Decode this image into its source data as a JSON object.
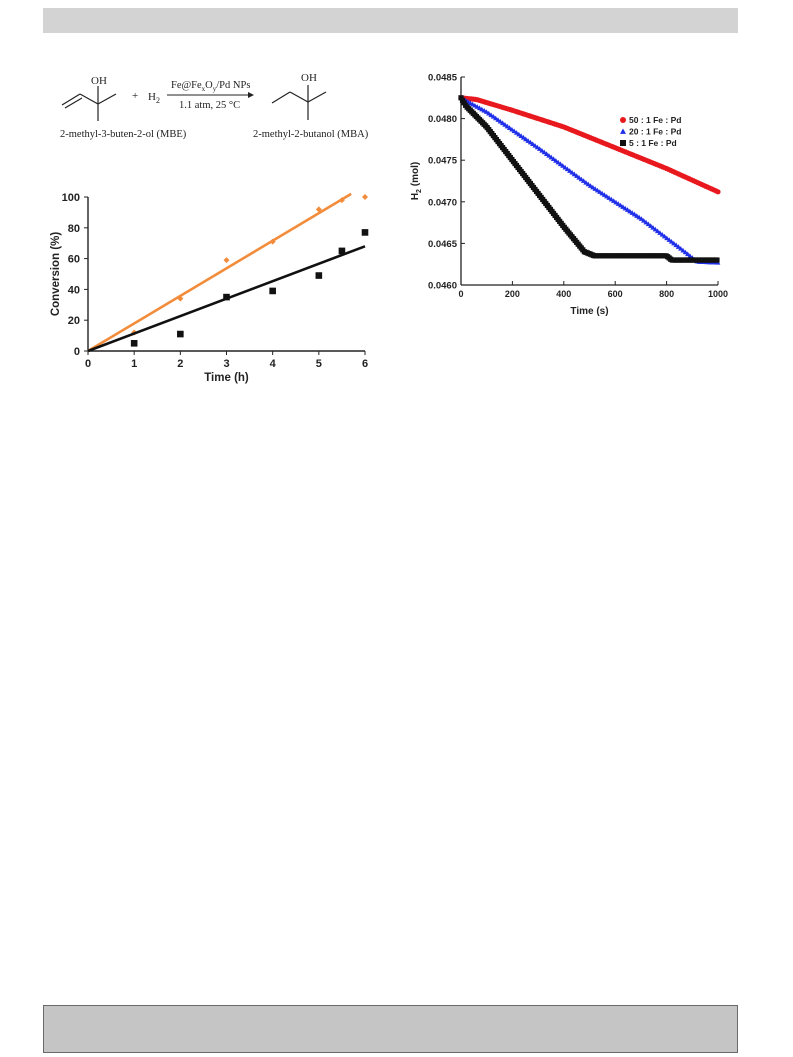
{
  "scheme": {
    "reactant_oh": "OH",
    "reactant_name": "2-methyl-3-buten-2-ol (MBE)",
    "plus": "+",
    "h2": "H",
    "h2_sub": "2",
    "catalyst_parts": [
      "Fe@Fe",
      "x",
      "O",
      "y",
      "/Pd NPs"
    ],
    "conditions": "1.1 atm, 25 °C",
    "product_oh": "OH",
    "product_name": "2-methyl-2-butanol (MBA)"
  },
  "chart_data": [
    {
      "type": "scatter",
      "title": "",
      "xlabel": "Time (h)",
      "ylabel": "Conversion (%)",
      "xlim": [
        0,
        6
      ],
      "ylim": [
        0,
        100
      ],
      "x_ticks": [
        "0",
        "1",
        "2",
        "3",
        "4",
        "5",
        "6"
      ],
      "y_ticks": [
        "0",
        "20",
        "40",
        "60",
        "80",
        "100"
      ],
      "grid": false,
      "legend": "none",
      "series": [
        {
          "color": "#f28c3a",
          "marker": "diamond",
          "x": [
            1,
            2,
            3,
            4,
            5,
            5.5,
            6
          ],
          "y": [
            12,
            34,
            59,
            71,
            92,
            98,
            100
          ],
          "fit": {
            "x": [
              0,
              5.7
            ],
            "y": [
              0,
              102
            ]
          }
        },
        {
          "color": "#111111",
          "marker": "square",
          "x": [
            1,
            2,
            3,
            4,
            5,
            5.5,
            6
          ],
          "y": [
            5,
            11,
            35,
            39,
            49,
            65,
            77
          ],
          "fit": {
            "x": [
              0,
              6
            ],
            "y": [
              0,
              68
            ]
          }
        }
      ]
    },
    {
      "type": "line",
      "title": "",
      "xlabel": "Time (s)",
      "ylabel": "H",
      "ylabel_sub": "2",
      "ylabel_unit": " (mol)",
      "xlim": [
        0,
        1000
      ],
      "ylim": [
        0.046,
        0.0485
      ],
      "x_ticks": [
        "0",
        "200",
        "400",
        "600",
        "800",
        "1000"
      ],
      "y_ticks": [
        "0.0460",
        "0.0465",
        "0.0470",
        "0.0475",
        "0.0480",
        "0.0485"
      ],
      "grid": false,
      "legend": "top-right",
      "series": [
        {
          "name": "50 : 1  Fe : Pd",
          "color": "#e8191e",
          "marker": "circle",
          "x": [
            0,
            60,
            200,
            400,
            600,
            800,
            1000
          ],
          "y": [
            0.04825,
            0.04823,
            0.0481,
            0.0479,
            0.04765,
            0.0474,
            0.04712
          ]
        },
        {
          "name": "20 : 1  Fe : Pd",
          "color": "#1f2ee8",
          "marker": "triangle",
          "x": [
            0,
            100,
            300,
            500,
            700,
            850,
            920,
            1000
          ],
          "y": [
            0.04825,
            0.04808,
            0.04765,
            0.0472,
            0.0468,
            0.04645,
            0.04628,
            0.04627
          ]
        },
        {
          "name": "5 : 1  Fe : Pd",
          "color": "#111111",
          "marker": "square",
          "x": [
            0,
            20,
            100,
            200,
            300,
            400,
            480,
            520,
            800,
            820,
            1000
          ],
          "y": [
            0.04825,
            0.04815,
            0.0479,
            0.0475,
            0.0471,
            0.0467,
            0.0464,
            0.04635,
            0.04635,
            0.0463,
            0.0463
          ]
        }
      ]
    }
  ]
}
